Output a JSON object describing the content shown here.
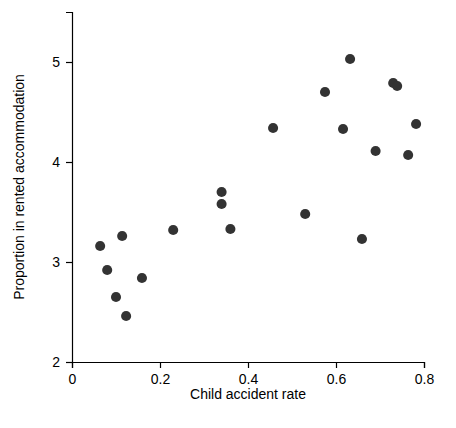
{
  "chart_data": {
    "type": "scatter",
    "x_label": "Child accident rate",
    "y_label": "Proportion in rented accommodation",
    "x": [
      0.064,
      0.08,
      0.1,
      0.114,
      0.123,
      0.159,
      0.23,
      0.34,
      0.34,
      0.36,
      0.457,
      0.53,
      0.575,
      0.616,
      0.632,
      0.659,
      0.69,
      0.73,
      0.739,
      0.764,
      0.782
    ],
    "values": [
      3.16,
      2.92,
      2.65,
      3.26,
      2.46,
      2.84,
      3.32,
      3.7,
      3.58,
      3.33,
      4.34,
      3.48,
      4.7,
      4.33,
      5.03,
      3.23,
      4.11,
      4.79,
      4.76,
      4.07,
      4.38
    ],
    "color": "#333333",
    "marker": "circle",
    "xlim": [
      0,
      0.8
    ],
    "xticks": [
      0,
      0.2,
      0.4,
      0.6,
      0.8
    ],
    "ylim": [
      2,
      5.5
    ],
    "yticks": [
      2,
      3,
      4,
      5
    ],
    "grid": false
  }
}
